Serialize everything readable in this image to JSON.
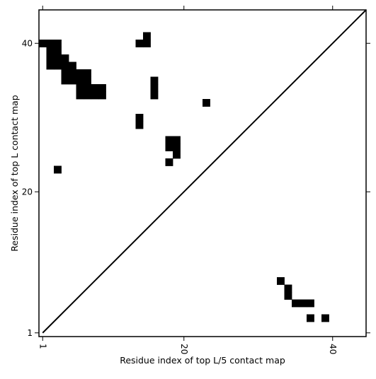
{
  "chart_data": {
    "type": "heatmap",
    "title": "",
    "xlabel": "Residue index of top L/5 contact map",
    "ylabel": "Residue index of top L contact map",
    "xlim": [
      0.5,
      44.5
    ],
    "ylim": [
      0.5,
      44.5
    ],
    "x_ticks": [
      1,
      20,
      40
    ],
    "y_ticks": [
      1,
      20,
      40
    ],
    "x_tick_labels": [
      "1",
      "20",
      "40"
    ],
    "y_tick_labels": [
      "1",
      "20",
      "40"
    ],
    "x_tick_rotation": "vertical",
    "diagonal_line": true,
    "grid": false,
    "legend": "none",
    "colors": {
      "contact": "#000000",
      "background": "#ffffff",
      "diagonal": "#000000"
    },
    "upper_triangle_contacts": [
      [
        1,
        40
      ],
      [
        2,
        40
      ],
      [
        3,
        40
      ],
      [
        2,
        39
      ],
      [
        3,
        39
      ],
      [
        2,
        38
      ],
      [
        3,
        38
      ],
      [
        4,
        38
      ],
      [
        2,
        37
      ],
      [
        3,
        37
      ],
      [
        4,
        37
      ],
      [
        5,
        37
      ],
      [
        4,
        36
      ],
      [
        5,
        36
      ],
      [
        6,
        36
      ],
      [
        7,
        36
      ],
      [
        4,
        35
      ],
      [
        5,
        35
      ],
      [
        6,
        35
      ],
      [
        7,
        35
      ],
      [
        6,
        34
      ],
      [
        7,
        34
      ],
      [
        8,
        34
      ],
      [
        9,
        34
      ],
      [
        6,
        33
      ],
      [
        7,
        33
      ],
      [
        8,
        33
      ],
      [
        9,
        33
      ],
      [
        14,
        40
      ],
      [
        15,
        40
      ],
      [
        15,
        41
      ],
      [
        16,
        35
      ],
      [
        16,
        34
      ],
      [
        16,
        33
      ],
      [
        23,
        32
      ],
      [
        14,
        30
      ],
      [
        14,
        29
      ],
      [
        18,
        27
      ],
      [
        19,
        27
      ],
      [
        18,
        26
      ],
      [
        19,
        26
      ],
      [
        19,
        25
      ],
      [
        18,
        24
      ],
      [
        3,
        23
      ]
    ],
    "lower_triangle_contacts": [
      [
        33,
        8
      ],
      [
        34,
        7
      ],
      [
        34,
        6
      ],
      [
        35,
        5
      ],
      [
        36,
        5
      ],
      [
        37,
        5
      ],
      [
        37,
        3
      ],
      [
        39,
        3
      ]
    ]
  }
}
